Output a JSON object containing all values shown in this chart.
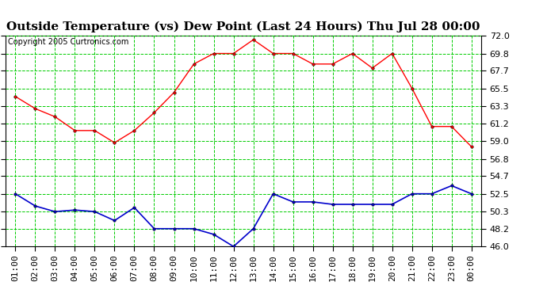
{
  "title": "Outside Temperature (vs) Dew Point (Last 24 Hours) Thu Jul 28 00:00",
  "copyright": "Copyright 2005 Curtronics.com",
  "x_labels": [
    "01:00",
    "02:00",
    "03:00",
    "04:00",
    "05:00",
    "06:00",
    "07:00",
    "08:00",
    "09:00",
    "10:00",
    "11:00",
    "12:00",
    "13:00",
    "14:00",
    "15:00",
    "16:00",
    "17:00",
    "18:00",
    "19:00",
    "20:00",
    "21:00",
    "22:00",
    "23:00",
    "00:00"
  ],
  "temp_data": [
    64.5,
    63.0,
    62.0,
    60.3,
    60.3,
    58.8,
    60.3,
    62.5,
    65.0,
    68.5,
    69.8,
    69.8,
    71.5,
    69.8,
    69.8,
    68.5,
    68.5,
    69.8,
    68.0,
    69.8,
    65.5,
    60.8,
    60.8,
    58.3
  ],
  "dew_data": [
    52.5,
    51.0,
    50.3,
    50.5,
    50.3,
    49.2,
    50.8,
    48.2,
    48.2,
    48.2,
    47.5,
    46.0,
    48.2,
    52.5,
    51.5,
    51.5,
    51.2,
    51.2,
    51.2,
    51.2,
    52.5,
    52.5,
    53.5,
    52.5
  ],
  "y_ticks": [
    46.0,
    48.2,
    50.3,
    52.5,
    54.7,
    56.8,
    59.0,
    61.2,
    63.3,
    65.5,
    67.7,
    69.8,
    72.0
  ],
  "ylim": [
    46.0,
    72.0
  ],
  "temp_color": "#ff0000",
  "dew_color": "#0000cc",
  "grid_color": "#00cc00",
  "bg_color": "#ffffff",
  "title_fontsize": 11,
  "copyright_fontsize": 7,
  "tick_fontsize": 8
}
